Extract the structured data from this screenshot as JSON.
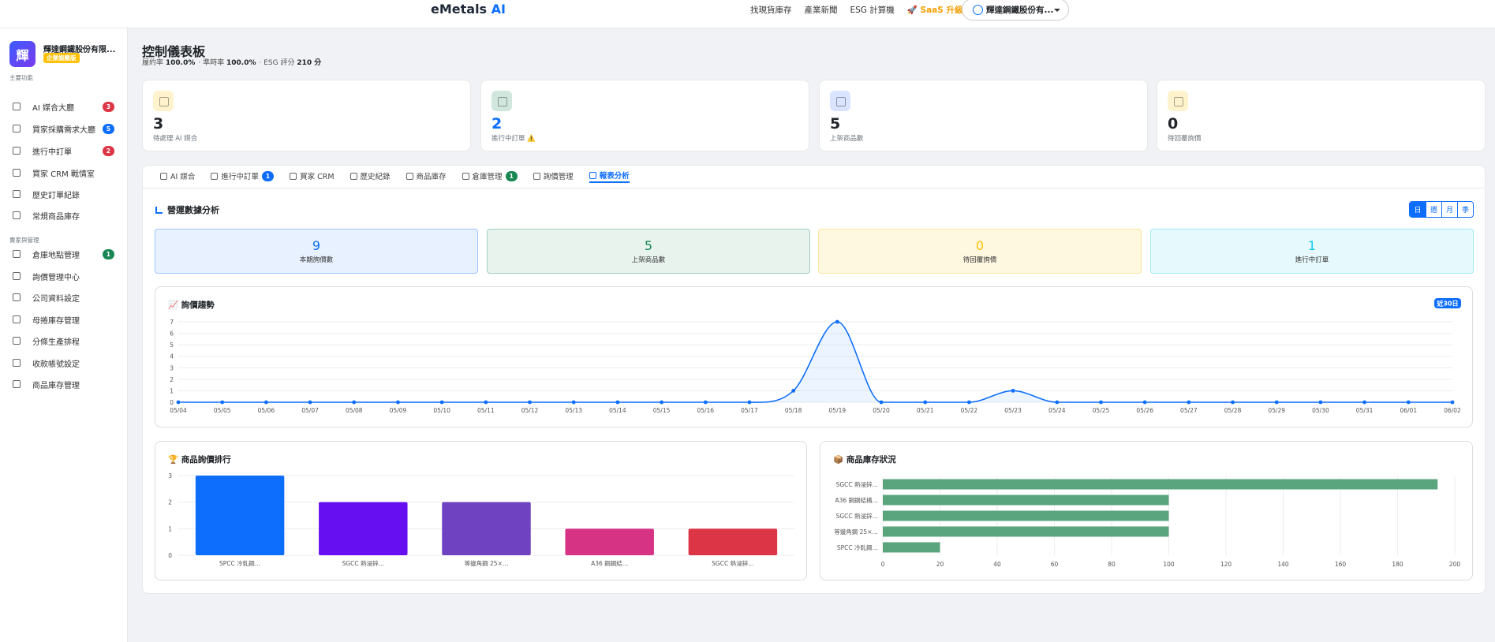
{
  "nav": {
    "brand": "eMetals",
    "brand_ai": "AI",
    "links": [
      "找現貨庫存",
      "產業新聞",
      "ESG 計算機"
    ],
    "upgrade": "🚀 SaaS 升級",
    "user": "輝達鋼鐵股份有..."
  },
  "sidebar": {
    "logo": "輝",
    "company": "輝達鋼鐵股份有限...",
    "plan": "企業旗艦版",
    "sections": [
      {
        "title": "主要功能",
        "items": [
          {
            "label": "AI 媒合大廳",
            "badge": "3",
            "badge_color": "#dc3545"
          },
          {
            "label": "買家採購需求大廳",
            "badge": "5",
            "badge_color": "#0d6efd"
          },
          {
            "label": "進行中訂單",
            "badge": "2",
            "badge_color": "#dc3545"
          },
          {
            "label": "買家 CRM 戰情室"
          },
          {
            "label": "歷史訂單紀錄"
          },
          {
            "label": "常規商品庫存"
          }
        ]
      },
      {
        "title": "賣家與管理",
        "items": [
          {
            "label": "倉庫地點管理",
            "badge": "1",
            "badge_color": "#198754"
          },
          {
            "label": "詢價管理中心"
          },
          {
            "label": "公司資料設定"
          },
          {
            "label": "母捲庫存管理"
          },
          {
            "label": "分條生產排程"
          },
          {
            "label": "收款帳號設定"
          },
          {
            "label": "商品庫存管理"
          }
        ]
      }
    ]
  },
  "header": {
    "title": "控制儀表板",
    "metrics": [
      {
        "label": "履約率",
        "value": "100.0%"
      },
      {
        "label": "· 準時率",
        "value": "100.0%"
      },
      {
        "label": "· ESG 評分",
        "value": "210 分"
      }
    ]
  },
  "kpis": [
    {
      "value": "3",
      "label": "待處理 AI 媒合",
      "color": "#212529",
      "icon_bg": "#fff3cd"
    },
    {
      "value": "2",
      "label": "進行中訂單 ⚠️",
      "color": "#0d6efd",
      "icon_bg": "#d1e7dd"
    },
    {
      "value": "5",
      "label": "上架商品數",
      "color": "#212529",
      "icon_bg": "#dbe4ff"
    },
    {
      "value": "0",
      "label": "待回覆詢價",
      "color": "#212529",
      "icon_bg": "#fff3cd"
    }
  ],
  "tabs": {
    "active": 7,
    "items": [
      {
        "label": "AI 媒合"
      },
      {
        "label": "進行中訂單",
        "badge": "1",
        "badge_color": "#0d6efd"
      },
      {
        "label": "買家 CRM"
      },
      {
        "label": "歷史紀錄"
      },
      {
        "label": "商品庫存"
      },
      {
        "label": "倉庫管理",
        "badge": "1",
        "badge_color": "#198754"
      },
      {
        "label": "詢價管理"
      },
      {
        "label": "報表分析"
      }
    ]
  },
  "analytics": {
    "title": "營運數據分析",
    "periods": [
      "日",
      "週",
      "月",
      "季"
    ],
    "active_period": 0,
    "stats": [
      {
        "value": "9",
        "label": "本期詢價數",
        "color": "#0d6efd",
        "bg": "#e7f1ff",
        "border": "#9ec5fe"
      },
      {
        "value": "5",
        "label": "上架商品數",
        "color": "#198754",
        "bg": "#e8f3ee",
        "border": "#a3cfbb"
      },
      {
        "value": "0",
        "label": "待回覆詢價",
        "color": "#ffc107",
        "bg": "#fff8e1",
        "border": "#ffe69c"
      },
      {
        "value": "1",
        "label": "進行中訂單",
        "color": "#0dcaf0",
        "bg": "#e6f9fc",
        "border": "#9eeaf9"
      }
    ]
  },
  "chart_data": [
    {
      "type": "line",
      "title": "📈 詢價趨勢",
      "badge": "近30日",
      "color": "#0d6efd",
      "grid": true,
      "categories": [
        "05/04",
        "05/05",
        "05/06",
        "05/07",
        "05/08",
        "05/09",
        "05/10",
        "05/11",
        "05/12",
        "05/13",
        "05/14",
        "05/15",
        "05/16",
        "05/17",
        "05/18",
        "05/19",
        "05/20",
        "05/21",
        "05/22",
        "05/23",
        "05/24",
        "05/25",
        "05/26",
        "05/27",
        "05/28",
        "05/29",
        "05/30",
        "05/31",
        "06/01",
        "06/02"
      ],
      "values": [
        0,
        0,
        0,
        0,
        0,
        0,
        0,
        0,
        0,
        0,
        0,
        0,
        0,
        0,
        1,
        7,
        0,
        0,
        0,
        1,
        0,
        0,
        0,
        0,
        0,
        0,
        0,
        0,
        0,
        0
      ],
      "ylim": [
        0,
        7
      ],
      "yticks": [
        0,
        1,
        2,
        3,
        4,
        5,
        6,
        7
      ]
    },
    {
      "type": "bar",
      "title": "🏆 商品詢價排行",
      "grid": true,
      "categories": [
        "SPCC 冷軋鋼…",
        "SGCC 熱浸鋅…",
        "等邊角鋼 25×…",
        "A36 鋼鋼結…",
        "SGCC 熱浸鋅…"
      ],
      "values": [
        3,
        2,
        2,
        1,
        1
      ],
      "colors": [
        "#0d6efd",
        "#6610f2",
        "#6f42c1",
        "#d63384",
        "#dc3545"
      ],
      "ylim": [
        0,
        3
      ],
      "yticks": [
        0,
        1,
        2,
        3
      ]
    },
    {
      "type": "bar",
      "horizontal": true,
      "title": "📦 商品庫存狀況",
      "grid": true,
      "color": "#5aa57d",
      "categories": [
        "SGCC 熱浸鋅…",
        "A36 鋼鋼結構…",
        "SGCC 熱浸鋅…",
        "等邊角鋼 25×…",
        "SPCC 冷軋鋼…"
      ],
      "values": [
        194,
        100,
        100,
        100,
        20
      ],
      "xlim": [
        0,
        200
      ],
      "xticks": [
        0,
        20,
        40,
        60,
        80,
        100,
        120,
        140,
        160,
        180,
        200
      ]
    }
  ]
}
